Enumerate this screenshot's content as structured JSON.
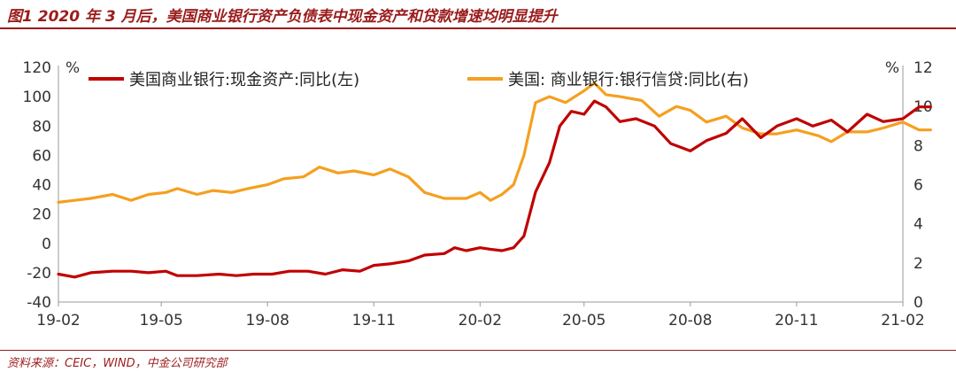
{
  "figure": {
    "title": "图1   2020 年 3 月后，美国商业银行资产负债表中现金资产和贷款增速均明显提升",
    "source": "资料来源：CEIC，WIND，中金公司研究部"
  },
  "chart_data": {
    "type": "line",
    "x_tick_labels": [
      "19-02",
      "19-05",
      "19-08",
      "19-11",
      "20-02",
      "20-05",
      "20-08",
      "20-11",
      "21-02"
    ],
    "x_range": [
      "2019-02",
      "2021-02"
    ],
    "y_left": {
      "unit": "%",
      "lim": [
        -40,
        120
      ],
      "ticks": [
        -40,
        -20,
        0,
        20,
        40,
        60,
        80,
        100,
        120
      ]
    },
    "y_right": {
      "unit": "%",
      "lim": [
        0,
        12
      ],
      "ticks": [
        0,
        2,
        4,
        6,
        8,
        10,
        12
      ]
    },
    "grid": false,
    "legend_position": "top",
    "series": [
      {
        "name": "美国商业银行:现金资产:同比(左)",
        "axis": "left",
        "color": "#c00000",
        "points": [
          [
            "2019-02-01",
            -21
          ],
          [
            "2019-02-15",
            -23
          ],
          [
            "2019-03-01",
            -20
          ],
          [
            "2019-03-20",
            -19
          ],
          [
            "2019-04-05",
            -19
          ],
          [
            "2019-04-20",
            -20
          ],
          [
            "2019-05-05",
            -19
          ],
          [
            "2019-05-15",
            -22
          ],
          [
            "2019-06-01",
            -22
          ],
          [
            "2019-06-20",
            -21
          ],
          [
            "2019-07-05",
            -22
          ],
          [
            "2019-07-20",
            -21
          ],
          [
            "2019-08-05",
            -21
          ],
          [
            "2019-08-20",
            -19
          ],
          [
            "2019-09-05",
            -19
          ],
          [
            "2019-09-20",
            -21
          ],
          [
            "2019-10-05",
            -18
          ],
          [
            "2019-10-20",
            -19
          ],
          [
            "2019-11-01",
            -15
          ],
          [
            "2019-11-15",
            -14
          ],
          [
            "2019-12-01",
            -12
          ],
          [
            "2019-12-15",
            -8
          ],
          [
            "2020-01-01",
            -7
          ],
          [
            "2020-01-10",
            -3
          ],
          [
            "2020-01-20",
            -5
          ],
          [
            "2020-02-01",
            -3
          ],
          [
            "2020-02-10",
            -4
          ],
          [
            "2020-02-20",
            -5
          ],
          [
            "2020-03-01",
            -3
          ],
          [
            "2020-03-10",
            5
          ],
          [
            "2020-03-20",
            35
          ],
          [
            "2020-04-01",
            55
          ],
          [
            "2020-04-10",
            80
          ],
          [
            "2020-04-20",
            90
          ],
          [
            "2020-05-01",
            88
          ],
          [
            "2020-05-10",
            97
          ],
          [
            "2020-05-20",
            93
          ],
          [
            "2020-06-01",
            83
          ],
          [
            "2020-06-15",
            85
          ],
          [
            "2020-07-01",
            80
          ],
          [
            "2020-07-15",
            68
          ],
          [
            "2020-08-01",
            63
          ],
          [
            "2020-08-15",
            70
          ],
          [
            "2020-09-01",
            75
          ],
          [
            "2020-09-15",
            85
          ],
          [
            "2020-10-01",
            72
          ],
          [
            "2020-10-15",
            80
          ],
          [
            "2020-11-01",
            85
          ],
          [
            "2020-11-15",
            80
          ],
          [
            "2020-12-01",
            84
          ],
          [
            "2020-12-15",
            76
          ],
          [
            "2021-01-01",
            88
          ],
          [
            "2021-01-15",
            83
          ],
          [
            "2021-02-01",
            85
          ],
          [
            "2021-02-15",
            93
          ],
          [
            "2021-02-25",
            93
          ]
        ]
      },
      {
        "name": "美国:   商业银行:银行信贷:同比(右)",
        "axis": "right",
        "color": "#f4a020",
        "points": [
          [
            "2019-02-01",
            5.1
          ],
          [
            "2019-02-15",
            5.2
          ],
          [
            "2019-03-01",
            5.3
          ],
          [
            "2019-03-20",
            5.5
          ],
          [
            "2019-04-05",
            5.2
          ],
          [
            "2019-04-20",
            5.5
          ],
          [
            "2019-05-05",
            5.6
          ],
          [
            "2019-05-15",
            5.8
          ],
          [
            "2019-06-01",
            5.5
          ],
          [
            "2019-06-15",
            5.7
          ],
          [
            "2019-07-01",
            5.6
          ],
          [
            "2019-07-15",
            5.8
          ],
          [
            "2019-08-01",
            6.0
          ],
          [
            "2019-08-15",
            6.3
          ],
          [
            "2019-09-01",
            6.4
          ],
          [
            "2019-09-15",
            6.9
          ],
          [
            "2019-10-01",
            6.6
          ],
          [
            "2019-10-15",
            6.7
          ],
          [
            "2019-11-01",
            6.5
          ],
          [
            "2019-11-15",
            6.8
          ],
          [
            "2019-12-01",
            6.4
          ],
          [
            "2019-12-15",
            5.6
          ],
          [
            "2020-01-01",
            5.3
          ],
          [
            "2020-01-20",
            5.3
          ],
          [
            "2020-02-01",
            5.6
          ],
          [
            "2020-02-10",
            5.2
          ],
          [
            "2020-02-20",
            5.5
          ],
          [
            "2020-03-01",
            6.0
          ],
          [
            "2020-03-10",
            7.5
          ],
          [
            "2020-03-20",
            10.2
          ],
          [
            "2020-04-01",
            10.5
          ],
          [
            "2020-04-15",
            10.2
          ],
          [
            "2020-05-01",
            10.8
          ],
          [
            "2020-05-10",
            11.2
          ],
          [
            "2020-05-20",
            10.6
          ],
          [
            "2020-06-01",
            10.5
          ],
          [
            "2020-06-20",
            10.3
          ],
          [
            "2020-07-05",
            9.5
          ],
          [
            "2020-07-20",
            10.0
          ],
          [
            "2020-08-01",
            9.8
          ],
          [
            "2020-08-15",
            9.2
          ],
          [
            "2020-09-01",
            9.5
          ],
          [
            "2020-09-15",
            8.9
          ],
          [
            "2020-10-01",
            8.6
          ],
          [
            "2020-10-15",
            8.6
          ],
          [
            "2020-11-01",
            8.8
          ],
          [
            "2020-11-20",
            8.5
          ],
          [
            "2020-12-01",
            8.2
          ],
          [
            "2020-12-15",
            8.7
          ],
          [
            "2021-01-01",
            8.7
          ],
          [
            "2021-01-15",
            8.9
          ],
          [
            "2021-02-01",
            9.2
          ],
          [
            "2021-02-15",
            8.8
          ],
          [
            "2021-02-25",
            8.8
          ]
        ]
      }
    ]
  }
}
